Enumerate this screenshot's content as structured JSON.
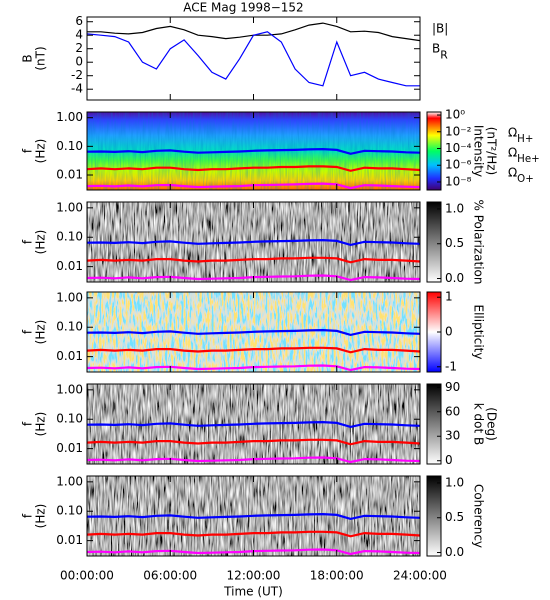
{
  "chart_data": [
    {
      "type": "line",
      "title": "ACE Mag 1998−152",
      "ylabel": [
        "B",
        "(nT)"
      ],
      "x": [
        0,
        1,
        2,
        3,
        4,
        5,
        6,
        7,
        8,
        9,
        10,
        11,
        12,
        13,
        14,
        15,
        16,
        17,
        18,
        19,
        20,
        21,
        22,
        23,
        24
      ],
      "xlim": [
        0,
        24
      ],
      "ylim": [
        -5.6,
        6.7
      ],
      "yticks": [
        6,
        4,
        2,
        0,
        -2,
        -4
      ],
      "series": [
        {
          "name": "|B|",
          "color": "#000000",
          "values": [
            4.5,
            4.5,
            4.3,
            4.2,
            4.4,
            5,
            5.3,
            4.8,
            4,
            3.8,
            3.5,
            3.7,
            4,
            4,
            4.2,
            4.8,
            5.5,
            5.8,
            5.3,
            4.5,
            4.6,
            4.4,
            3.8,
            3.5,
            3.2
          ]
        },
        {
          "name": "BR",
          "color": "#0000ff",
          "values": [
            4.2,
            4,
            3.8,
            3,
            0,
            -1,
            2,
            3.3,
            1,
            -1.5,
            -2.5,
            0.5,
            4,
            4.5,
            3,
            -1,
            -3,
            -3.5,
            3,
            -2,
            -1.5,
            -2.5,
            -3,
            -3.5,
            -3.5
          ]
        }
      ]
    },
    {
      "type": "heatmap",
      "ylabel": [
        "f",
        "(Hz)"
      ],
      "log_y": true,
      "x": [
        0,
        1,
        2,
        3,
        4,
        5,
        6,
        7,
        8,
        9,
        10,
        11,
        12,
        13,
        14,
        15,
        16,
        17,
        18,
        19,
        20,
        21,
        22,
        23,
        24
      ],
      "xlim": [
        0,
        24
      ],
      "ylim": [
        0.003,
        1.58
      ],
      "yticks": [
        {
          "value": 1,
          "label": "1.00"
        },
        {
          "value": 0.1,
          "label": "0.10"
        },
        0.01
      ],
      "colormap": "rainbow",
      "log_c": true,
      "clim": [
        1.1e-09,
        2.3
      ],
      "cticks": [
        {
          "value": 1,
          "label": "10⁰"
        },
        {
          "value": 0.01,
          "label": "10⁻²"
        },
        {
          "value": 0.0001,
          "label": "10⁻⁴"
        },
        {
          "value": 1e-06,
          "label": "10⁻⁶"
        },
        {
          "value": 1e-08,
          "label": "10⁻⁸"
        }
      ],
      "colorbar_label": [
        "Intensity",
        "(nT²/Hz)"
      ],
      "series": [
        {
          "name": "ΩH+",
          "color": "#0000ff",
          "values": [
            0.065,
            0.066,
            0.064,
            0.068,
            0.063,
            0.07,
            0.072,
            0.065,
            0.06,
            0.062,
            0.064,
            0.066,
            0.07,
            0.072,
            0.074,
            0.075,
            0.078,
            0.08,
            0.075,
            0.055,
            0.07,
            0.068,
            0.066,
            0.062,
            0.06
          ]
        },
        {
          "name": "ΩHe+",
          "color": "#ff0000",
          "values": [
            0.016,
            0.017,
            0.016,
            0.017,
            0.016,
            0.018,
            0.018,
            0.016,
            0.015,
            0.016,
            0.016,
            0.017,
            0.018,
            0.018,
            0.019,
            0.019,
            0.02,
            0.02,
            0.019,
            0.014,
            0.018,
            0.017,
            0.017,
            0.016,
            0.015
          ]
        },
        {
          "name": "ΩO+",
          "color": "#ff00ff",
          "values": [
            0.0041,
            0.0042,
            0.004,
            0.0043,
            0.004,
            0.0044,
            0.0045,
            0.0041,
            0.0038,
            0.0039,
            0.004,
            0.0041,
            0.0044,
            0.0045,
            0.0046,
            0.0047,
            0.0049,
            0.005,
            0.0047,
            0.0035,
            0.0044,
            0.0043,
            0.0041,
            0.0039,
            0.0038
          ]
        }
      ]
    },
    {
      "type": "heatmap",
      "ylabel": [
        "f",
        "(Hz)"
      ],
      "log_y": true,
      "x": [
        0,
        1,
        2,
        3,
        4,
        5,
        6,
        7,
        8,
        9,
        10,
        11,
        12,
        13,
        14,
        15,
        16,
        17,
        18,
        19,
        20,
        21,
        22,
        23,
        24
      ],
      "xlim": [
        0,
        24
      ],
      "ylim": [
        0.003,
        1.58
      ],
      "yticks": [
        {
          "value": 1,
          "label": "1.00"
        },
        {
          "value": 0.1,
          "label": "0.10"
        },
        0.01
      ],
      "colormap": "gray",
      "clim": [
        -0.05,
        1.1
      ],
      "cticks": [
        {
          "value": 0,
          "label": "0.0"
        },
        0.5,
        {
          "value": 1,
          "label": "1.0"
        }
      ],
      "colorbar_label": [
        "% Polarization"
      ],
      "series": [
        {
          "color": "#0000ff",
          "values": [
            0.065,
            0.066,
            0.064,
            0.068,
            0.063,
            0.07,
            0.072,
            0.065,
            0.06,
            0.062,
            0.064,
            0.066,
            0.07,
            0.072,
            0.074,
            0.075,
            0.078,
            0.08,
            0.075,
            0.055,
            0.07,
            0.068,
            0.066,
            0.062,
            0.06
          ]
        },
        {
          "color": "#ff0000",
          "values": [
            0.016,
            0.017,
            0.016,
            0.017,
            0.016,
            0.018,
            0.018,
            0.016,
            0.015,
            0.016,
            0.016,
            0.017,
            0.018,
            0.018,
            0.019,
            0.019,
            0.02,
            0.02,
            0.019,
            0.014,
            0.018,
            0.017,
            0.017,
            0.016,
            0.015
          ]
        },
        {
          "color": "#ff00ff",
          "values": [
            0.0041,
            0.0042,
            0.004,
            0.0043,
            0.004,
            0.0044,
            0.0045,
            0.0041,
            0.0038,
            0.0039,
            0.004,
            0.0041,
            0.0044,
            0.0045,
            0.0046,
            0.0047,
            0.0049,
            0.005,
            0.0047,
            0.0035,
            0.0044,
            0.0043,
            0.0041,
            0.0039,
            0.0038
          ]
        }
      ]
    },
    {
      "type": "heatmap",
      "ylabel": [
        "f",
        "(Hz)"
      ],
      "log_y": true,
      "x": [
        0,
        1,
        2,
        3,
        4,
        5,
        6,
        7,
        8,
        9,
        10,
        11,
        12,
        13,
        14,
        15,
        16,
        17,
        18,
        19,
        20,
        21,
        22,
        23,
        24
      ],
      "xlim": [
        0,
        24
      ],
      "ylim": [
        0.003,
        1.58
      ],
      "yticks": [
        {
          "value": 1,
          "label": "1.00"
        },
        {
          "value": 0.1,
          "label": "0.10"
        },
        0.01
      ],
      "colormap": "bwr",
      "clim": [
        -1.15,
        1.15
      ],
      "cticks": [
        1,
        0,
        -1
      ],
      "colorbar_label": [
        "Ellipticity"
      ],
      "series": [
        {
          "color": "#0000ff",
          "values": [
            0.065,
            0.066,
            0.064,
            0.068,
            0.063,
            0.07,
            0.072,
            0.065,
            0.06,
            0.062,
            0.064,
            0.066,
            0.07,
            0.072,
            0.074,
            0.075,
            0.078,
            0.08,
            0.075,
            0.055,
            0.07,
            0.068,
            0.066,
            0.062,
            0.06
          ]
        },
        {
          "color": "#ff0000",
          "values": [
            0.016,
            0.017,
            0.016,
            0.017,
            0.016,
            0.018,
            0.018,
            0.016,
            0.015,
            0.016,
            0.016,
            0.017,
            0.018,
            0.018,
            0.019,
            0.019,
            0.02,
            0.02,
            0.019,
            0.014,
            0.018,
            0.017,
            0.017,
            0.016,
            0.015
          ]
        },
        {
          "color": "#ff00ff",
          "values": [
            0.0041,
            0.0042,
            0.004,
            0.0043,
            0.004,
            0.0044,
            0.0045,
            0.0041,
            0.0038,
            0.0039,
            0.004,
            0.0041,
            0.0044,
            0.0045,
            0.0046,
            0.0047,
            0.0049,
            0.005,
            0.0047,
            0.0035,
            0.0044,
            0.0043,
            0.0041,
            0.0039,
            0.0038
          ]
        }
      ]
    },
    {
      "type": "heatmap",
      "ylabel": [
        "f",
        "(Hz)"
      ],
      "log_y": true,
      "x": [
        0,
        1,
        2,
        3,
        4,
        5,
        6,
        7,
        8,
        9,
        10,
        11,
        12,
        13,
        14,
        15,
        16,
        17,
        18,
        19,
        20,
        21,
        22,
        23,
        24
      ],
      "xlim": [
        0,
        24
      ],
      "ylim": [
        0.003,
        1.58
      ],
      "yticks": [
        {
          "value": 1,
          "label": "1.00"
        },
        {
          "value": 0.1,
          "label": "0.10"
        },
        0.01
      ],
      "colormap": "gray",
      "clim": [
        -4,
        94
      ],
      "cticks": [
        90,
        60,
        30,
        0
      ],
      "colorbar_label": [
        "k dot B",
        "(Deg)"
      ],
      "series": [
        {
          "color": "#0000ff",
          "values": [
            0.065,
            0.066,
            0.064,
            0.068,
            0.063,
            0.07,
            0.072,
            0.065,
            0.06,
            0.062,
            0.064,
            0.066,
            0.07,
            0.072,
            0.074,
            0.075,
            0.078,
            0.08,
            0.075,
            0.055,
            0.07,
            0.068,
            0.066,
            0.062,
            0.06
          ]
        },
        {
          "color": "#ff0000",
          "values": [
            0.016,
            0.017,
            0.016,
            0.017,
            0.016,
            0.018,
            0.018,
            0.016,
            0.015,
            0.016,
            0.016,
            0.017,
            0.018,
            0.018,
            0.019,
            0.019,
            0.02,
            0.02,
            0.019,
            0.014,
            0.018,
            0.017,
            0.017,
            0.016,
            0.015
          ]
        },
        {
          "color": "#ff00ff",
          "values": [
            0.0041,
            0.0042,
            0.004,
            0.0043,
            0.004,
            0.0044,
            0.0045,
            0.0041,
            0.0038,
            0.0039,
            0.004,
            0.0041,
            0.0044,
            0.0045,
            0.0046,
            0.0047,
            0.0049,
            0.005,
            0.0047,
            0.0035,
            0.0044,
            0.0043,
            0.0041,
            0.0039,
            0.0038
          ]
        }
      ]
    },
    {
      "type": "heatmap",
      "ylabel": [
        "f",
        "(Hz)"
      ],
      "log_y": true,
      "x": [
        0,
        1,
        2,
        3,
        4,
        5,
        6,
        7,
        8,
        9,
        10,
        11,
        12,
        13,
        14,
        15,
        16,
        17,
        18,
        19,
        20,
        21,
        22,
        23,
        24
      ],
      "xlim": [
        0,
        24
      ],
      "ylim": [
        0.003,
        1.58
      ],
      "yticks": [
        {
          "value": 1,
          "label": "1.00"
        },
        {
          "value": 0.1,
          "label": "0.10"
        },
        0.01
      ],
      "colormap": "gray",
      "clim": [
        -0.05,
        1.1
      ],
      "cticks": [
        {
          "value": 0,
          "label": "0.0"
        },
        0.5,
        {
          "value": 1,
          "label": "1.0"
        }
      ],
      "colorbar_label": [
        "Coherency"
      ],
      "xticks": [
        {
          "value": 0,
          "label": "00:00:00"
        },
        {
          "value": 6,
          "label": "06:00:00"
        },
        {
          "value": 12,
          "label": "12:00:00"
        },
        {
          "value": 18,
          "label": "18:00:00"
        },
        {
          "value": 24,
          "label": "24:00:00"
        }
      ],
      "xlabel": "Time (UT)",
      "series": [
        {
          "color": "#0000ff",
          "values": [
            0.065,
            0.066,
            0.064,
            0.068,
            0.063,
            0.07,
            0.072,
            0.065,
            0.06,
            0.062,
            0.064,
            0.066,
            0.07,
            0.072,
            0.074,
            0.075,
            0.078,
            0.08,
            0.075,
            0.055,
            0.07,
            0.068,
            0.066,
            0.062,
            0.06
          ]
        },
        {
          "color": "#ff0000",
          "values": [
            0.016,
            0.017,
            0.016,
            0.017,
            0.016,
            0.018,
            0.018,
            0.016,
            0.015,
            0.016,
            0.016,
            0.017,
            0.018,
            0.018,
            0.019,
            0.019,
            0.02,
            0.02,
            0.019,
            0.014,
            0.018,
            0.017,
            0.017,
            0.016,
            0.015
          ]
        },
        {
          "color": "#ff00ff",
          "values": [
            0.0041,
            0.0042,
            0.004,
            0.0043,
            0.004,
            0.0044,
            0.0045,
            0.0041,
            0.0038,
            0.0039,
            0.004,
            0.0041,
            0.0044,
            0.0045,
            0.0046,
            0.0047,
            0.0049,
            0.005,
            0.0047,
            0.0035,
            0.0044,
            0.0043,
            0.0041,
            0.0039,
            0.0038
          ]
        }
      ]
    }
  ]
}
